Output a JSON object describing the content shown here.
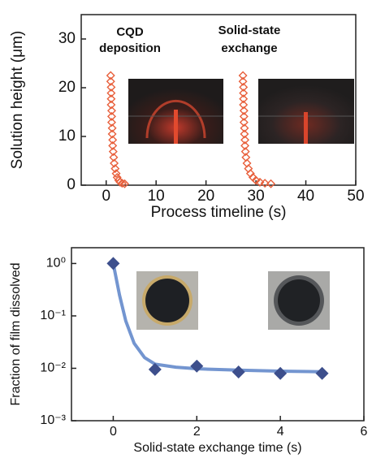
{
  "chart_data": [
    {
      "type": "scatter",
      "x_label": "Process timeline (s)",
      "y_label": "Solution height (μm)",
      "annotations": [
        [
          "CQD",
          "deposition"
        ],
        [
          "Solid-state",
          "exchange"
        ]
      ],
      "xlim": [
        -5,
        50
      ],
      "xticks": [
        0,
        10,
        20,
        30,
        40,
        50
      ],
      "ylim": [
        0,
        35
      ],
      "yticks": [
        0,
        10,
        20,
        30
      ],
      "series": [
        {
          "color": "#e8603c",
          "marker": "hollow-diamond",
          "x": [
            0.9,
            0.9,
            1.0,
            1.0,
            1.0,
            1.0,
            1.1,
            1.1,
            1.1,
            1.2,
            1.2,
            1.3,
            1.3,
            1.4,
            1.5,
            1.6,
            1.8,
            2.0,
            2.2,
            2.5,
            2.8,
            3.2,
            3.7
          ],
          "values": [
            22.5,
            21.3,
            20.1,
            18.9,
            17.7,
            16.5,
            15.3,
            14.1,
            12.9,
            11.7,
            10.5,
            9.3,
            8.1,
            6.9,
            5.7,
            4.5,
            3.4,
            2.4,
            1.6,
            1.0,
            0.6,
            0.4,
            0.3
          ]
        },
        {
          "color": "#e8603c",
          "marker": "hollow-diamond",
          "x": [
            27.4,
            27.4,
            27.5,
            27.5,
            27.5,
            27.5,
            27.6,
            27.6,
            27.6,
            27.7,
            27.7,
            27.8,
            27.8,
            27.9,
            28.0,
            28.2,
            28.5,
            28.9,
            29.4,
            30.0,
            30.8,
            31.8,
            33.0
          ],
          "values": [
            22.5,
            21.3,
            20.1,
            18.9,
            17.7,
            16.5,
            15.3,
            14.1,
            12.9,
            11.7,
            10.5,
            9.3,
            8.1,
            6.9,
            5.7,
            4.5,
            3.4,
            2.4,
            1.6,
            1.0,
            0.6,
            0.4,
            0.3
          ]
        }
      ]
    },
    {
      "type": "scatter",
      "x_label": "Solid-state exchange time (s)",
      "y_label": "Fraction of film dissolved",
      "log_y": true,
      "xlim": [
        -1,
        6
      ],
      "xticks": [
        0,
        2,
        4,
        6
      ],
      "ylim": [
        0.001,
        2
      ],
      "yticks": [
        {
          "value": 0.001,
          "label": "10⁻³"
        },
        {
          "value": 0.01,
          "label": "10⁻²"
        },
        {
          "value": 0.1,
          "label": "10⁻¹"
        },
        {
          "value": 1,
          "label": "10⁰"
        }
      ],
      "series": [
        {
          "color": "#5b82c8",
          "marker": "line",
          "x": [
            0,
            0.15,
            0.3,
            0.5,
            0.75,
            1,
            1.5,
            2,
            3,
            4,
            5
          ],
          "values": [
            1,
            0.25,
            0.08,
            0.03,
            0.016,
            0.012,
            0.0105,
            0.0098,
            0.0092,
            0.0088,
            0.0086
          ]
        },
        {
          "color": "#3d4f8c",
          "marker": "diamond",
          "x": [
            0,
            1,
            2,
            3,
            4,
            5
          ],
          "values": [
            1.0,
            0.0095,
            0.011,
            0.0085,
            0.008,
            0.008
          ]
        }
      ]
    }
  ]
}
